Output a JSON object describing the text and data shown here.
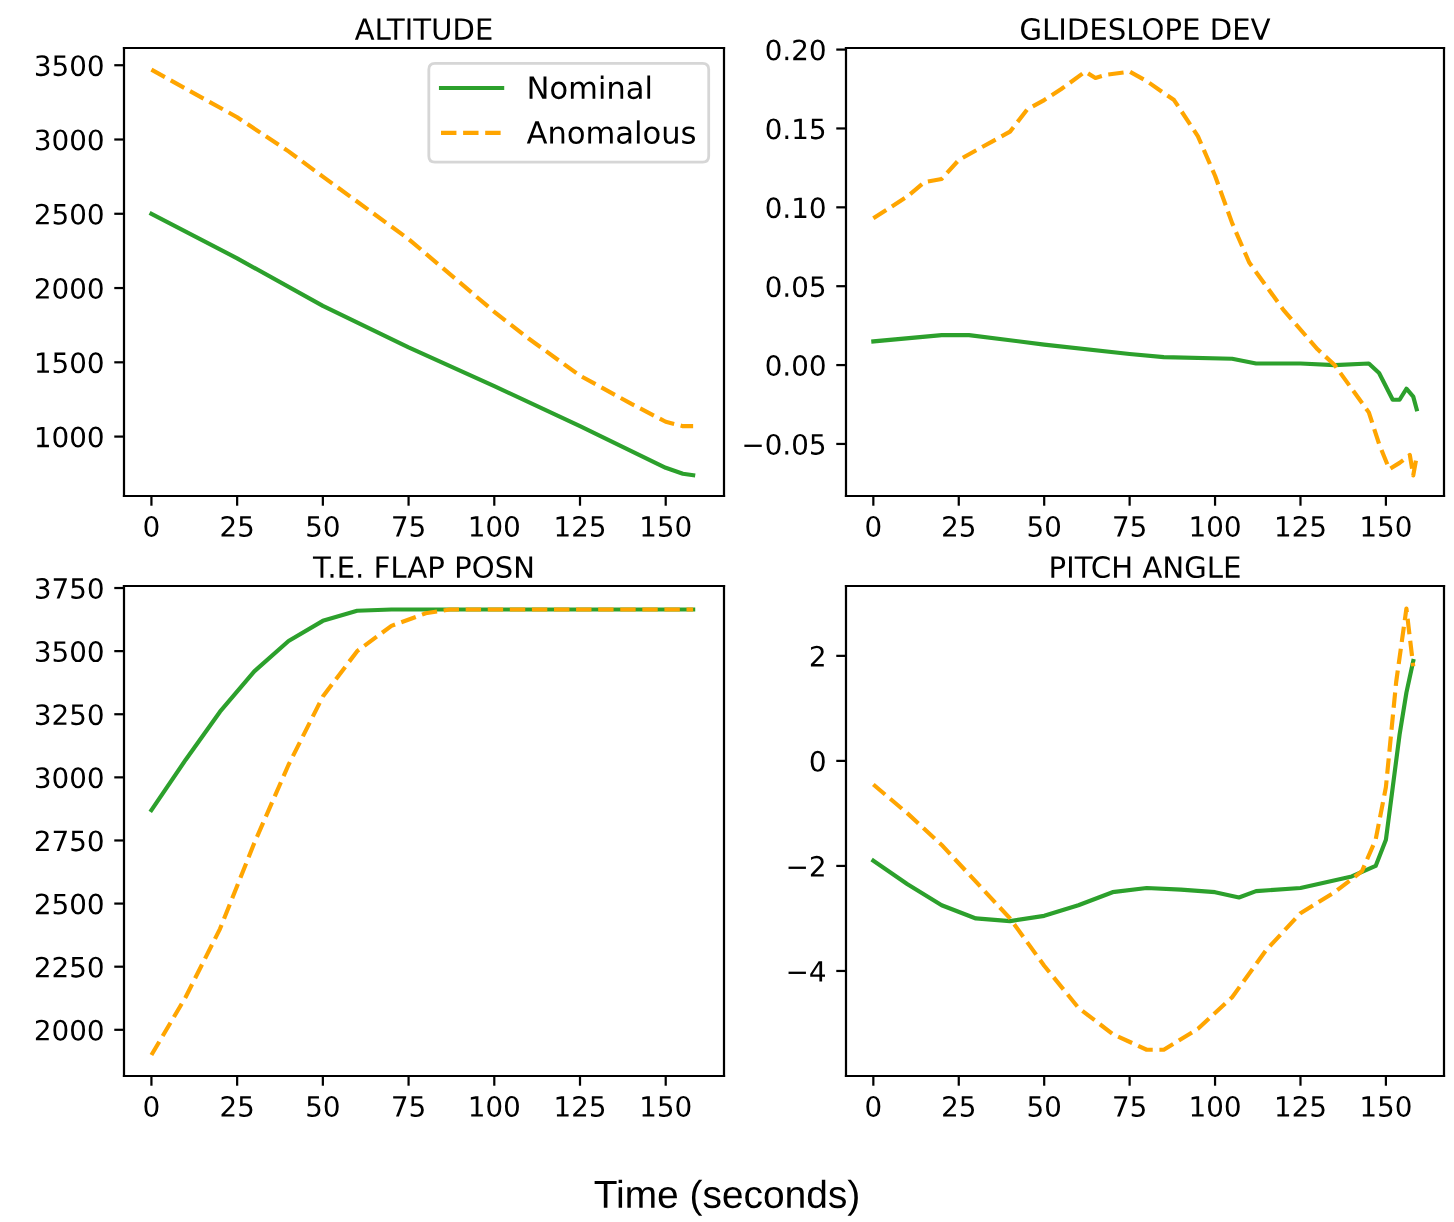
{
  "chart_data": [
    {
      "type": "line",
      "title": "ALTITUDE",
      "legend": "top right",
      "grid": false,
      "xlim": [
        -8,
        167
      ],
      "xticks": [
        0,
        25,
        50,
        75,
        100,
        125,
        150
      ],
      "ylim": [
        600,
        3616
      ],
      "yticks": [
        1000,
        1500,
        2000,
        2500,
        3000,
        3500
      ],
      "series": [
        {
          "name": "Nominal",
          "color": "#2ca02c",
          "line_style": "solid",
          "x": [
            0,
            25,
            50,
            75,
            100,
            125,
            150,
            155,
            158
          ],
          "values": [
            2500,
            2200,
            1880,
            1600,
            1340,
            1070,
            790,
            750,
            740
          ]
        },
        {
          "name": "Anomalous",
          "color": "#ffa500",
          "line_style": "dashed",
          "x": [
            0,
            25,
            40,
            50,
            75,
            100,
            110,
            125,
            140,
            150,
            155,
            158
          ],
          "values": [
            3470,
            3150,
            2920,
            2750,
            2330,
            1840,
            1660,
            1410,
            1220,
            1100,
            1070,
            1070
          ]
        }
      ]
    },
    {
      "type": "line",
      "title": "GLIDESLOPE DEV",
      "grid": false,
      "xlim": [
        -8,
        167
      ],
      "xticks": [
        0,
        25,
        50,
        75,
        100,
        125,
        150
      ],
      "ylim": [
        -0.083,
        0.201
      ],
      "yticks": [
        {
          "value": -0.05,
          "label": "−0.05"
        },
        {
          "value": 0,
          "label": "0.00"
        },
        {
          "value": 0.05,
          "label": "0.05"
        },
        {
          "value": 0.1,
          "label": "0.10"
        },
        {
          "value": 0.15,
          "label": "0.15"
        },
        {
          "value": 0.2,
          "label": "0.20"
        }
      ],
      "series": [
        {
          "color": "#2ca02c",
          "line_style": "solid",
          "x": [
            0,
            20,
            28,
            50,
            75,
            85,
            105,
            112,
            125,
            135,
            145,
            148,
            152,
            154,
            156,
            158,
            159
          ],
          "values": [
            0.015,
            0.019,
            0.019,
            0.013,
            0.007,
            0.005,
            0.004,
            0.001,
            0.001,
            0.0,
            0.001,
            -0.005,
            -0.022,
            -0.022,
            -0.015,
            -0.02,
            -0.028
          ]
        },
        {
          "color": "#ffa500",
          "line_style": "dashed",
          "x": [
            0,
            5,
            10,
            15,
            20,
            25,
            30,
            35,
            40,
            45,
            50,
            55,
            62,
            65,
            68,
            75,
            80,
            88,
            95,
            100,
            105,
            110,
            120,
            130,
            135,
            140,
            145,
            148,
            151,
            154,
            157,
            158,
            159
          ],
          "values": [
            0.093,
            0.1,
            0.107,
            0.116,
            0.118,
            0.13,
            0.136,
            0.142,
            0.148,
            0.162,
            0.168,
            0.175,
            0.186,
            0.182,
            0.184,
            0.186,
            0.18,
            0.168,
            0.145,
            0.12,
            0.09,
            0.065,
            0.035,
            0.01,
            0,
            -0.015,
            -0.03,
            -0.05,
            -0.066,
            -0.062,
            -0.057,
            -0.07,
            -0.058
          ]
        }
      ]
    },
    {
      "type": "line",
      "title": "T.E. FLAP POSN",
      "grid": false,
      "xlim": [
        -8,
        167
      ],
      "xticks": [
        0,
        25,
        50,
        75,
        100,
        125,
        150
      ],
      "ylim": [
        1817,
        3758
      ],
      "yticks": [
        2000,
        2250,
        2500,
        2750,
        3000,
        3250,
        3500,
        3750
      ],
      "series": [
        {
          "color": "#2ca02c",
          "line_style": "solid",
          "x": [
            0,
            10,
            20,
            30,
            40,
            50,
            60,
            70,
            158
          ],
          "values": [
            2870,
            3070,
            3260,
            3420,
            3540,
            3620,
            3660,
            3665,
            3665
          ]
        },
        {
          "color": "#ffa500",
          "line_style": "dashed",
          "x": [
            0,
            10,
            20,
            30,
            40,
            50,
            60,
            70,
            80,
            87,
            158
          ],
          "values": [
            1900,
            2130,
            2400,
            2740,
            3050,
            3320,
            3500,
            3600,
            3650,
            3665,
            3665
          ]
        }
      ]
    },
    {
      "type": "line",
      "title": "PITCH ANGLE",
      "grid": false,
      "annotations": [
        "Time (seconds)"
      ],
      "xlim": [
        -8,
        167
      ],
      "xticks": [
        0,
        25,
        50,
        75,
        100,
        125,
        150
      ],
      "ylim": [
        -6.0,
        3.33
      ],
      "yticks": [
        {
          "value": -4,
          "label": "−4"
        },
        {
          "value": -2,
          "label": "−2"
        },
        0,
        2
      ],
      "series": [
        {
          "color": "#2ca02c",
          "line_style": "solid",
          "x": [
            0,
            10,
            20,
            30,
            40,
            50,
            60,
            70,
            80,
            90,
            100,
            107,
            112,
            125,
            140,
            147,
            150,
            152,
            154,
            156,
            158
          ],
          "values": [
            -1.9,
            -2.35,
            -2.75,
            -3.0,
            -3.05,
            -2.95,
            -2.75,
            -2.5,
            -2.42,
            -2.45,
            -2.5,
            -2.6,
            -2.48,
            -2.42,
            -2.2,
            -2.0,
            -1.5,
            -0.5,
            0.5,
            1.3,
            1.9
          ]
        },
        {
          "color": "#ffa500",
          "line_style": "dashed",
          "x": [
            0,
            10,
            20,
            30,
            40,
            50,
            60,
            70,
            80,
            85,
            95,
            105,
            115,
            125,
            135,
            143,
            147,
            150,
            153,
            156,
            158
          ],
          "values": [
            -0.45,
            -1.0,
            -1.6,
            -2.3,
            -3.0,
            -3.9,
            -4.7,
            -5.2,
            -5.5,
            -5.5,
            -5.1,
            -4.5,
            -3.6,
            -2.9,
            -2.5,
            -2.1,
            -1.5,
            -0.5,
            1.5,
            2.9,
            1.8
          ]
        }
      ]
    }
  ]
}
